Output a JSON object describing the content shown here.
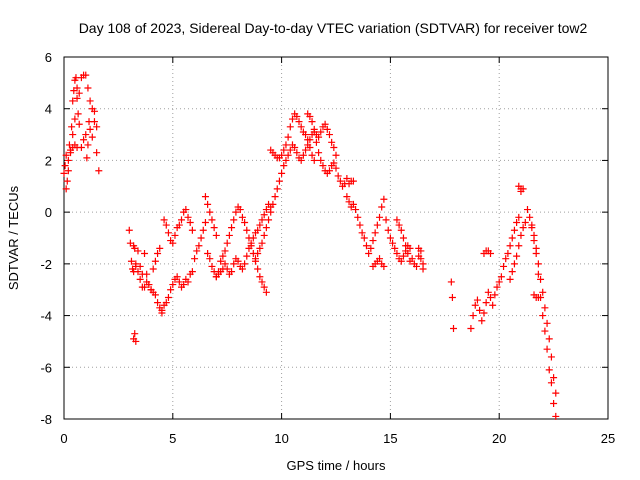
{
  "chart_data": {
    "type": "scatter",
    "title": "Day 108 of 2023, Sidereal Day-to-day VTEC variation (SDTVAR) for receiver tow2",
    "xlabel": "GPS time / hours",
    "ylabel": "SDTVAR / TECUs",
    "xlim": [
      0,
      25
    ],
    "ylim": [
      -8,
      6
    ],
    "xticks": [
      "0",
      "5",
      "10",
      "15",
      "20",
      "25"
    ],
    "yticks": [
      "-8",
      "-6",
      "-4",
      "-2",
      "0",
      "2",
      "4",
      "6"
    ],
    "grid": true,
    "marker": "+",
    "color": "#ff0000",
    "series": [
      {
        "name": "SDTVAR",
        "x": [
          0.0,
          0.05,
          0.1,
          0.15,
          0.2,
          0.25,
          0.3,
          0.35,
          0.4,
          0.45,
          0.5,
          0.55,
          0.6,
          0.65,
          0.7,
          0.8,
          0.9,
          1.0,
          1.05,
          1.1,
          1.15,
          1.2,
          1.3,
          1.4,
          1.5,
          1.6,
          0.3,
          0.4,
          0.5,
          0.6,
          0.7,
          0.8,
          0.9,
          1.0,
          1.1,
          1.2,
          1.3,
          1.4,
          1.5,
          0.1,
          0.2,
          0.3,
          0.4,
          0.5,
          0.6,
          3.0,
          3.05,
          3.1,
          3.15,
          3.2,
          3.25,
          3.3,
          3.4,
          3.5,
          3.6,
          3.7,
          3.8,
          3.9,
          4.0,
          4.1,
          4.2,
          4.3,
          4.4,
          3.2,
          3.3,
          3.4,
          3.5,
          3.6,
          3.7,
          3.8,
          3.9,
          4.0,
          4.1,
          4.2,
          4.3,
          4.4,
          4.5,
          3.2,
          3.25,
          3.3,
          4.6,
          4.7,
          4.8,
          4.9,
          5.0,
          5.1,
          5.2,
          5.3,
          5.4,
          5.5,
          5.6,
          5.7,
          5.8,
          5.9,
          4.5,
          4.6,
          4.7,
          4.8,
          4.9,
          5.0,
          5.1,
          5.2,
          5.3,
          5.4,
          5.5,
          5.6,
          5.7,
          5.8,
          5.9,
          6.0,
          6.1,
          6.2,
          6.3,
          6.4,
          6.5,
          6.6,
          6.7,
          6.8,
          6.9,
          7.0,
          7.1,
          7.2,
          7.3,
          7.4,
          7.5,
          7.6,
          7.7,
          7.8,
          7.9,
          8.0,
          8.1,
          8.2,
          8.3,
          8.4,
          8.5,
          8.6,
          8.7,
          8.8,
          8.9,
          9.0,
          9.1,
          9.2,
          9.3,
          7.0,
          7.1,
          7.2,
          7.3,
          7.4,
          7.5,
          7.6,
          7.7,
          7.8,
          7.9,
          8.0,
          8.1,
          8.2,
          8.3,
          8.4,
          8.5,
          8.6,
          8.7,
          8.8,
          8.9,
          9.0,
          9.1,
          9.2,
          9.3,
          9.4,
          9.5,
          6.5,
          6.6,
          6.7,
          6.8,
          6.9,
          7.0,
          8.8,
          8.9,
          9.0,
          9.1,
          9.2,
          9.3,
          9.4,
          9.5,
          9.6,
          9.7,
          9.8,
          9.9,
          10.0,
          10.1,
          10.2,
          10.3,
          10.4,
          10.5,
          10.6,
          10.7,
          10.8,
          10.9,
          11.0,
          11.1,
          11.2,
          11.3,
          11.4,
          11.5,
          11.6,
          11.7,
          11.8,
          11.9,
          12.0,
          12.1,
          12.2,
          12.3,
          12.4,
          12.5,
          12.6,
          12.7,
          12.8,
          12.9,
          13.0,
          13.1,
          13.2,
          13.3,
          9.5,
          9.6,
          9.7,
          9.8,
          9.9,
          10.0,
          10.1,
          10.2,
          10.3,
          10.4,
          10.5,
          10.6,
          10.7,
          10.8,
          10.9,
          11.0,
          11.1,
          11.2,
          11.3,
          11.4,
          11.5,
          11.2,
          11.3,
          11.4,
          11.5,
          11.6,
          11.7,
          11.8,
          11.9,
          12.0,
          12.1,
          12.2,
          12.3,
          12.4,
          12.5,
          13.0,
          13.1,
          13.2,
          13.3,
          13.4,
          13.5,
          13.6,
          13.7,
          13.8,
          13.9,
          14.0,
          14.1,
          14.2,
          14.3,
          14.4,
          14.5,
          14.6,
          14.7,
          14.8,
          14.9,
          15.0,
          15.1,
          15.2,
          15.3,
          15.4,
          15.5,
          15.6,
          15.7,
          15.8,
          15.9,
          16.0,
          16.1,
          16.2,
          16.3,
          16.4,
          16.5,
          14.2,
          14.3,
          14.4,
          14.5,
          14.6,
          14.7,
          15.3,
          15.4,
          15.5,
          15.6,
          15.7,
          15.8,
          15.9,
          16.3,
          16.4,
          16.5,
          17.8,
          17.85,
          17.9,
          18.7,
          18.8,
          18.9,
          19.0,
          19.1,
          19.2,
          19.3,
          19.4,
          19.5,
          19.6,
          19.7,
          19.8,
          19.9,
          20.0,
          20.1,
          20.2,
          20.3,
          20.4,
          20.5,
          20.6,
          20.7,
          20.8,
          20.9,
          21.0,
          19.3,
          19.4,
          19.5,
          19.6,
          20.5,
          20.6,
          20.7,
          20.8,
          20.9,
          21.0,
          21.1,
          21.2,
          20.9,
          21.0,
          21.1,
          21.3,
          21.4,
          21.5,
          21.6,
          21.7,
          21.8,
          21.9,
          22.0,
          22.1,
          22.2,
          22.3,
          22.4,
          22.5,
          22.6,
          21.5,
          21.6,
          21.7,
          21.8,
          21.9,
          22.0,
          22.1,
          22.2,
          22.3,
          22.4,
          22.5,
          22.6,
          21.6,
          21.7,
          21.8
        ],
        "y": [
          1.5,
          1.8,
          2.2,
          1.2,
          2.0,
          2.6,
          2.4,
          3.3,
          4.3,
          4.7,
          5.1,
          5.2,
          4.8,
          3.8,
          3.4,
          2.5,
          2.8,
          3.0,
          2.1,
          2.6,
          3.5,
          3.2,
          2.9,
          3.5,
          2.3,
          1.6,
          2.4,
          3.0,
          3.6,
          4.4,
          4.6,
          5.2,
          5.3,
          5.3,
          4.8,
          4.3,
          4.0,
          3.9,
          3.3,
          0.9,
          1.6,
          2.3,
          2.5,
          2.6,
          2.5,
          -0.7,
          -1.2,
          -1.9,
          -2.2,
          -1.3,
          -1.4,
          -2.0,
          -2.3,
          -2.6,
          -2.9,
          -1.6,
          -2.4,
          -2.8,
          -3.0,
          -2.2,
          -1.9,
          -1.6,
          -1.4,
          -2.3,
          -2.1,
          -1.5,
          -2.1,
          -2.4,
          -2.9,
          -2.7,
          -2.8,
          -3.0,
          -3.1,
          -3.2,
          -3.5,
          -3.7,
          -3.9,
          -4.9,
          -4.7,
          -5.0,
          -0.3,
          -0.5,
          -0.8,
          -1.1,
          -1.2,
          -0.9,
          -0.6,
          -0.5,
          -0.3,
          0.0,
          0.1,
          -0.2,
          -0.4,
          -0.7,
          -3.8,
          -3.6,
          -3.5,
          -3.3,
          -3.0,
          -2.8,
          -2.6,
          -2.5,
          -2.7,
          -2.9,
          -2.8,
          -2.6,
          -2.7,
          -2.4,
          -2.3,
          -1.8,
          -1.5,
          -1.3,
          -1.0,
          -0.7,
          -0.4,
          -1.6,
          -1.8,
          -2.1,
          -2.3,
          -2.5,
          -2.3,
          -1.9,
          -1.7,
          -1.5,
          -1.2,
          -0.9,
          -0.6,
          -0.3,
          0.0,
          0.2,
          0.1,
          -0.2,
          -0.4,
          -0.7,
          -1.0,
          -1.3,
          -1.6,
          -1.9,
          -2.2,
          -2.5,
          -2.7,
          -2.9,
          -3.1,
          -2.5,
          -2.4,
          -2.3,
          -2.2,
          -2.0,
          -2.2,
          -2.4,
          -2.3,
          -2.0,
          -1.8,
          -1.9,
          -2.1,
          -2.2,
          -2.0,
          -1.7,
          -1.4,
          -1.2,
          -1.0,
          -0.8,
          -0.7,
          -0.5,
          -0.3,
          -0.1,
          0.1,
          0.3,
          0.2,
          0.6,
          0.3,
          0.0,
          -0.3,
          -0.6,
          -0.9,
          -1.8,
          -1.6,
          -1.4,
          -1.2,
          -0.9,
          -0.6,
          -0.3,
          0.0,
          0.3,
          0.6,
          0.9,
          1.2,
          1.5,
          1.8,
          2.0,
          2.2,
          2.4,
          2.6,
          2.5,
          2.3,
          2.1,
          2.0,
          2.2,
          2.4,
          2.6,
          2.8,
          3.0,
          3.1,
          2.7,
          2.3,
          2.0,
          1.8,
          1.6,
          1.5,
          1.6,
          1.8,
          1.9,
          1.7,
          1.4,
          1.2,
          1.0,
          1.1,
          1.3,
          1.1,
          1.2,
          1.2,
          2.4,
          2.3,
          2.2,
          2.1,
          2.1,
          2.2,
          2.4,
          2.6,
          2.9,
          3.3,
          3.6,
          3.8,
          3.7,
          3.5,
          3.3,
          3.1,
          3.0,
          2.8,
          2.5,
          2.2,
          2.0,
          3.8,
          3.7,
          3.5,
          3.2,
          3.0,
          2.9,
          3.1,
          3.3,
          3.4,
          3.2,
          3.0,
          2.7,
          2.5,
          2.2,
          0.6,
          0.4,
          0.2,
          0.3,
          0.1,
          -0.2,
          -0.5,
          -0.8,
          -1.0,
          -1.3,
          -1.6,
          -1.4,
          -1.1,
          -0.8,
          -0.5,
          -0.2,
          0.2,
          0.5,
          -0.3,
          -0.7,
          -1.0,
          -1.2,
          -1.4,
          -1.6,
          -1.8,
          -1.9,
          -1.7,
          -1.5,
          -1.3,
          -1.4,
          -1.8,
          -2.0,
          -2.1,
          -1.7,
          -1.5,
          -2.0,
          -2.1,
          -2.0,
          -1.9,
          -1.8,
          -2.0,
          -2.1,
          -0.3,
          -0.5,
          -0.7,
          -1.0,
          -1.3,
          -1.6,
          -1.9,
          -1.4,
          -1.8,
          -2.2,
          -2.7,
          -3.3,
          -4.5,
          -4.5,
          -4.0,
          -3.6,
          -3.4,
          -3.8,
          -4.2,
          -3.9,
          -3.5,
          -3.1,
          -3.3,
          -3.6,
          -3.2,
          -2.9,
          -2.7,
          -2.5,
          -2.1,
          -1.8,
          -1.6,
          -1.3,
          -1.0,
          -0.7,
          -0.4,
          -0.2,
          0.9,
          -1.6,
          -1.5,
          -1.5,
          -1.6,
          -2.6,
          -2.3,
          -2.0,
          -1.7,
          -1.3,
          -0.9,
          -0.6,
          -0.4,
          1.0,
          0.8,
          0.9,
          0.1,
          -0.2,
          -0.6,
          -1.1,
          -1.6,
          -2.4,
          -3.3,
          -4.0,
          -4.6,
          -5.3,
          -6.1,
          -6.6,
          -7.4,
          -7.9,
          -0.5,
          -0.9,
          -1.4,
          -2.0,
          -2.6,
          -3.1,
          -3.7,
          -4.3,
          -4.9,
          -5.6,
          -6.4,
          -7.0,
          -3.2,
          -3.3,
          -3.3
        ]
      }
    ]
  }
}
